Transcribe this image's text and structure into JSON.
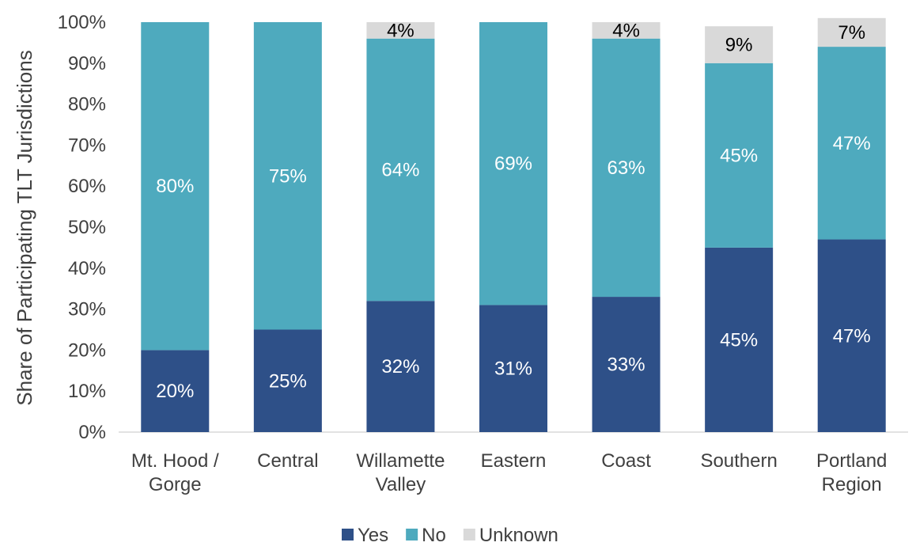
{
  "chart_data": {
    "type": "bar",
    "stacked": true,
    "categories": [
      [
        "Mt. Hood /",
        "Gorge"
      ],
      [
        "Central"
      ],
      [
        "Willamette",
        "Valley"
      ],
      [
        "Eastern"
      ],
      [
        "Coast"
      ],
      [
        "Southern"
      ],
      [
        "Portland",
        "Region"
      ]
    ],
    "series": [
      {
        "name": "Yes",
        "values": [
          20,
          25,
          32,
          31,
          33,
          45,
          47
        ],
        "labels": [
          "20%",
          "25%",
          "32%",
          "31%",
          "33%",
          "45%",
          "47%"
        ],
        "color": "#2e5088",
        "label_color": "#ffffff"
      },
      {
        "name": "No",
        "values": [
          80,
          75,
          64,
          69,
          63,
          45,
          47
        ],
        "labels": [
          "80%",
          "75%",
          "64%",
          "69%",
          "63%",
          "45%",
          "47%"
        ],
        "color": "#4eaabe",
        "label_color": "#ffffff"
      },
      {
        "name": "Unknown",
        "values": [
          0,
          0,
          4,
          0,
          4,
          9,
          7
        ],
        "labels": [
          "",
          "",
          "4%",
          "",
          "4%",
          "9%",
          "7%"
        ],
        "color": "#d9d9d9",
        "label_color": "#000000"
      }
    ],
    "ylabel": "Share of Participating TLT Jurisdictions",
    "ylim": [
      0,
      100
    ],
    "yticks": [
      "0%",
      "10%",
      "20%",
      "30%",
      "40%",
      "50%",
      "60%",
      "70%",
      "80%",
      "90%",
      "100%"
    ],
    "grid": false,
    "legend_position": "bottom"
  }
}
